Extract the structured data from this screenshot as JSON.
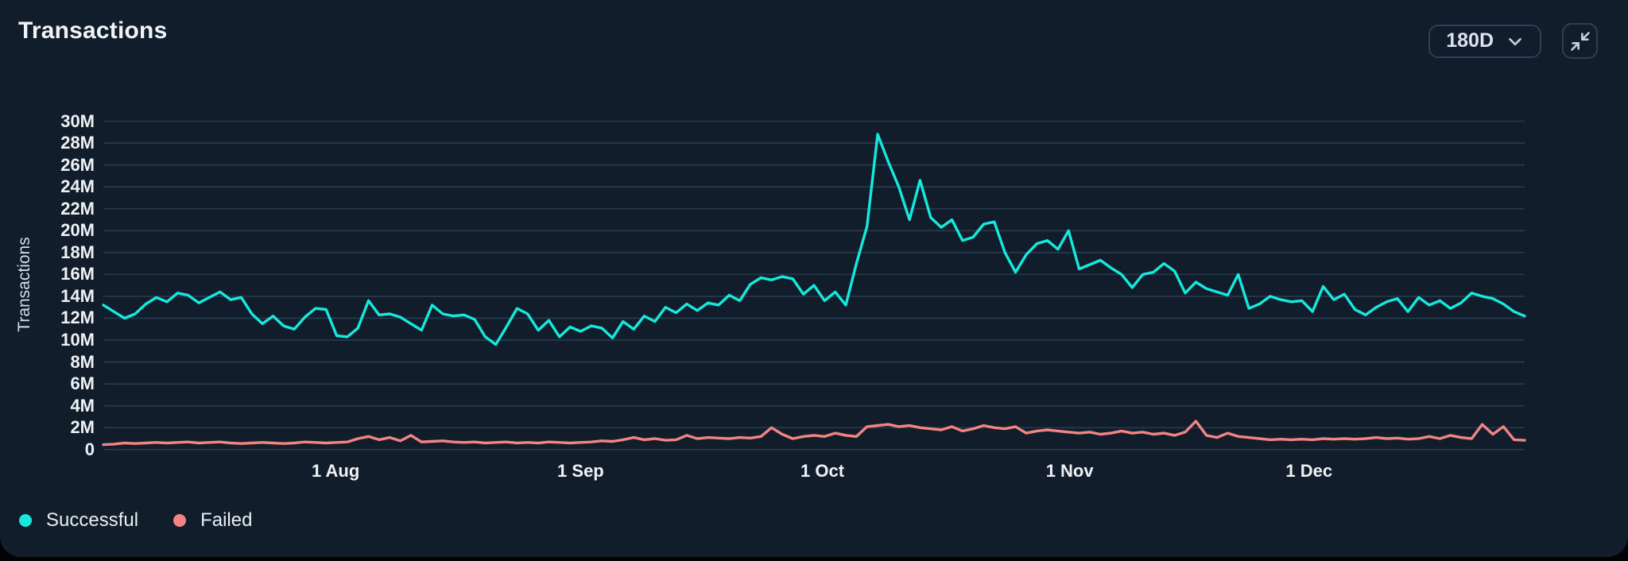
{
  "header": {
    "title": "Transactions",
    "range_label": "180D"
  },
  "legend": [
    {
      "label": "Successful",
      "color": "#15e8dd"
    },
    {
      "label": "Failed",
      "color": "#f48484"
    }
  ],
  "chart_data": {
    "type": "line",
    "title": "Transactions",
    "ylabel": "Transactions",
    "unit": "millions of transactions",
    "ylim": [
      0,
      30
    ],
    "grid": true,
    "legend_position": "bottom-left",
    "y_ticks": [
      {
        "v": 0,
        "label": "0"
      },
      {
        "v": 2,
        "label": "2M"
      },
      {
        "v": 4,
        "label": "4M"
      },
      {
        "v": 6,
        "label": "6M"
      },
      {
        "v": 8,
        "label": "8M"
      },
      {
        "v": 10,
        "label": "10M"
      },
      {
        "v": 12,
        "label": "12M"
      },
      {
        "v": 14,
        "label": "14M"
      },
      {
        "v": 16,
        "label": "16M"
      },
      {
        "v": 18,
        "label": "18M"
      },
      {
        "v": 20,
        "label": "20M"
      },
      {
        "v": 22,
        "label": "22M"
      },
      {
        "v": 24,
        "label": "24M"
      },
      {
        "v": 26,
        "label": "26M"
      },
      {
        "v": 28,
        "label": "28M"
      },
      {
        "v": 30,
        "label": "30M"
      }
    ],
    "x_ticks": [
      {
        "label": "1 Aug",
        "f": 0.1634
      },
      {
        "label": "1 Sep",
        "f": 0.3358
      },
      {
        "label": "1 Oct",
        "f": 0.5059
      },
      {
        "label": "1 Nov",
        "f": 0.6799
      },
      {
        "label": "1 Dec",
        "f": 0.8483
      }
    ],
    "series": [
      {
        "name": "Successful",
        "color": "#15e8dd",
        "values": [
          13.2,
          12.6,
          12.0,
          12.4,
          13.3,
          13.9,
          13.5,
          14.3,
          14.1,
          13.4,
          13.9,
          14.4,
          13.7,
          13.9,
          12.4,
          11.5,
          12.2,
          11.3,
          11.0,
          12.1,
          12.9,
          12.8,
          10.4,
          10.3,
          11.1,
          13.6,
          12.3,
          12.4,
          12.1,
          11.5,
          10.9,
          13.2,
          12.4,
          12.2,
          12.3,
          11.9,
          10.3,
          9.6,
          11.2,
          12.9,
          12.4,
          10.9,
          11.8,
          10.3,
          11.2,
          10.8,
          11.3,
          11.1,
          10.2,
          11.7,
          11.0,
          12.2,
          11.7,
          13.0,
          12.5,
          13.3,
          12.7,
          13.4,
          13.2,
          14.1,
          13.6,
          15.1,
          15.7,
          15.5,
          15.8,
          15.6,
          14.2,
          15.0,
          13.6,
          14.4,
          13.2,
          17.0,
          20.4,
          28.8,
          26.3,
          24.0,
          21.0,
          24.6,
          21.2,
          20.3,
          21.0,
          19.1,
          19.4,
          20.6,
          20.8,
          18.0,
          16.2,
          17.8,
          18.8,
          19.1,
          18.3,
          20.0,
          16.5,
          16.9,
          17.3,
          16.6,
          16.0,
          14.8,
          16.0,
          16.2,
          17.0,
          16.3,
          14.3,
          15.3,
          14.7,
          14.4,
          14.1,
          16.0,
          12.9,
          13.3,
          14.0,
          13.7,
          13.5,
          13.6,
          12.6,
          14.9,
          13.7,
          14.2,
          12.8,
          12.3,
          13.0,
          13.5,
          13.8,
          12.6,
          13.9,
          13.2,
          13.6,
          12.9,
          13.4,
          14.3,
          14.0,
          13.8,
          13.3,
          12.6,
          12.2
        ]
      },
      {
        "name": "Failed",
        "color": "#f48484",
        "values": [
          0.45,
          0.5,
          0.6,
          0.55,
          0.6,
          0.65,
          0.6,
          0.65,
          0.7,
          0.6,
          0.65,
          0.7,
          0.6,
          0.55,
          0.6,
          0.65,
          0.6,
          0.55,
          0.6,
          0.7,
          0.65,
          0.6,
          0.65,
          0.7,
          1.0,
          1.2,
          0.9,
          1.1,
          0.8,
          1.3,
          0.7,
          0.75,
          0.8,
          0.7,
          0.65,
          0.7,
          0.6,
          0.65,
          0.7,
          0.6,
          0.65,
          0.6,
          0.7,
          0.65,
          0.6,
          0.65,
          0.7,
          0.8,
          0.75,
          0.9,
          1.1,
          0.9,
          1.0,
          0.85,
          0.9,
          1.3,
          1.0,
          1.1,
          1.05,
          1.0,
          1.1,
          1.05,
          1.2,
          2.0,
          1.4,
          1.0,
          1.2,
          1.3,
          1.2,
          1.5,
          1.3,
          1.2,
          2.1,
          2.2,
          2.3,
          2.1,
          2.2,
          2.0,
          1.9,
          1.8,
          2.1,
          1.7,
          1.9,
          2.2,
          2.0,
          1.9,
          2.1,
          1.5,
          1.7,
          1.8,
          1.7,
          1.6,
          1.5,
          1.6,
          1.4,
          1.5,
          1.7,
          1.5,
          1.6,
          1.4,
          1.5,
          1.3,
          1.6,
          2.6,
          1.3,
          1.1,
          1.5,
          1.2,
          1.1,
          1.0,
          0.9,
          0.95,
          0.9,
          0.95,
          0.9,
          1.0,
          0.95,
          1.0,
          0.95,
          1.0,
          1.1,
          1.0,
          1.05,
          0.95,
          1.0,
          1.2,
          1.0,
          1.3,
          1.1,
          1.0,
          2.3,
          1.4,
          2.1,
          0.9,
          0.85
        ]
      }
    ]
  }
}
